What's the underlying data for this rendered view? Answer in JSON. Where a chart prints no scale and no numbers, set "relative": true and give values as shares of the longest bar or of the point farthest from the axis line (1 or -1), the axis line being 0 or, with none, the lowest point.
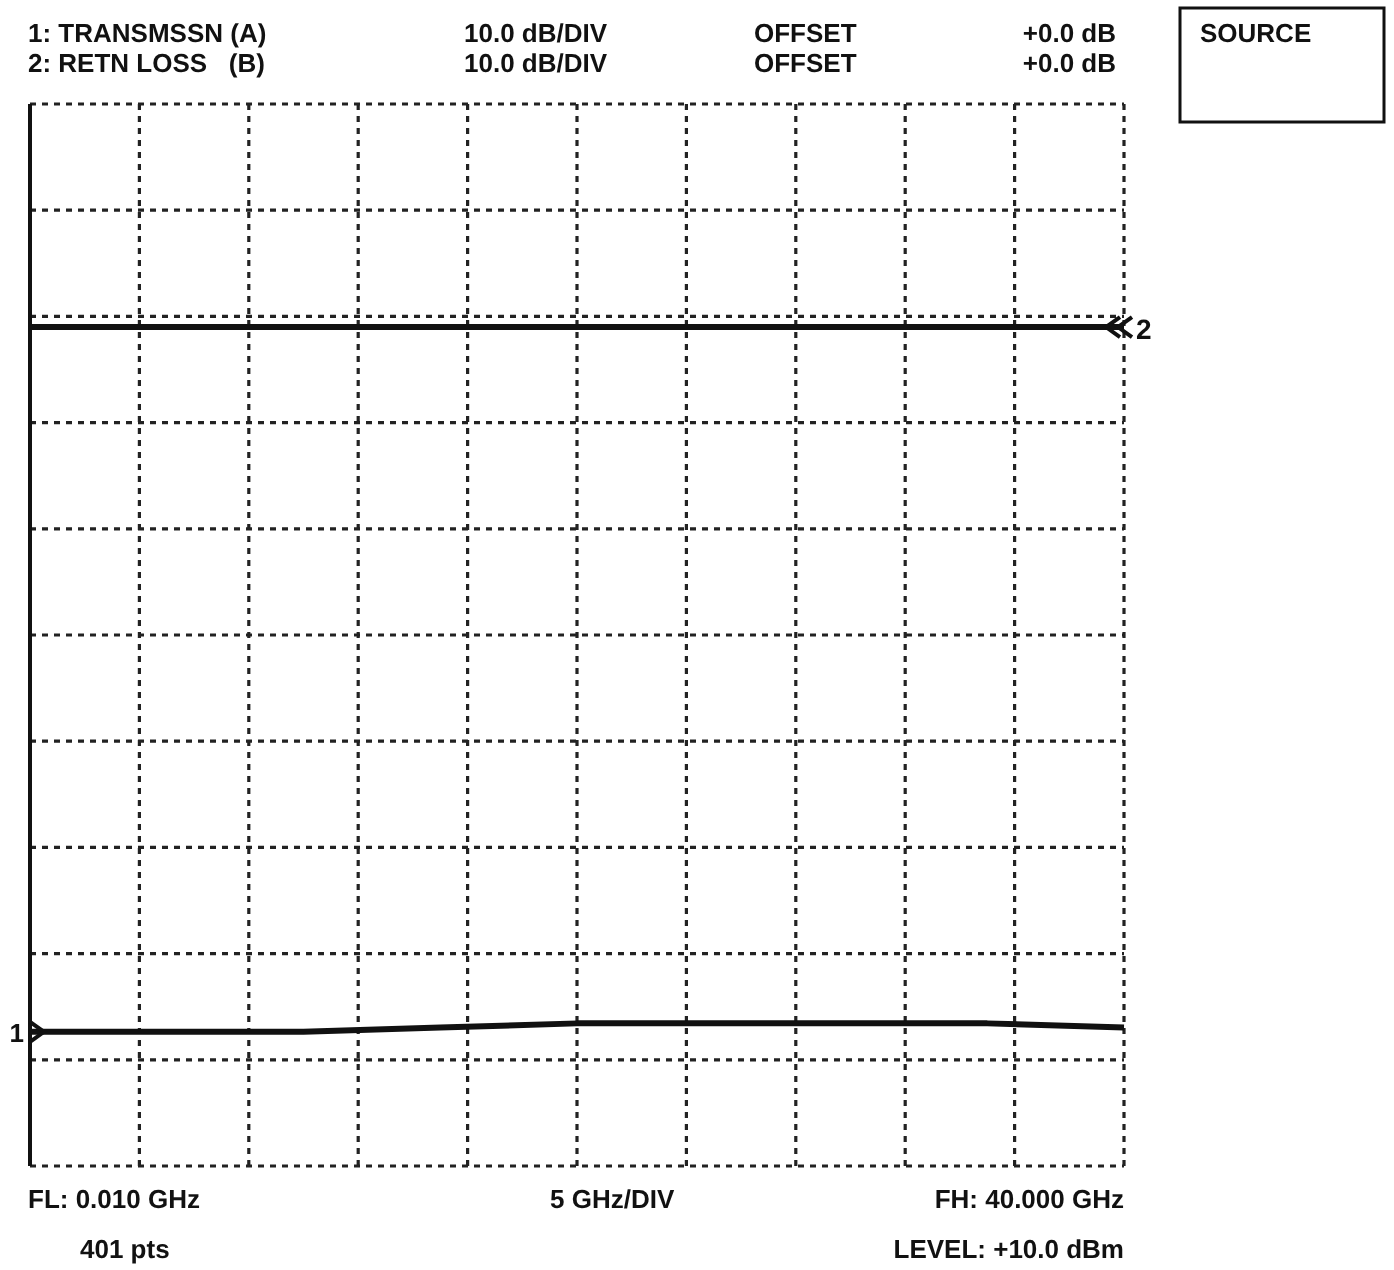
{
  "chart_data": {
    "type": "line",
    "relative": true,
    "grid": true,
    "legend": false,
    "marker": "none",
    "line_style": "solid",
    "categories": [
      null,
      null,
      null,
      null,
      null,
      null,
      null,
      null,
      null
    ],
    "series": [
      {
        "name": "1",
        "color": "#111111",
        "values": [
          0.16,
          0.16,
          0.16,
          0.165,
          0.17,
          0.17,
          0.17,
          0.17,
          0.165
        ]
      },
      {
        "name": "2",
        "color": "#111111",
        "values": [
          1,
          1,
          1,
          1,
          1,
          1,
          1,
          1,
          1
        ]
      }
    ],
    "annotations": [
      "1: TRANSMSSN (A)",
      "10.0 dB/DIV",
      "OFFSET",
      "+0.0 dB",
      "2: RETN LOSS   (B)",
      "10.0 dB/DIV",
      "OFFSET",
      "+0.0 dB",
      "SOURCE",
      "FL: 0.010 GHz",
      "5 GHz/DIV",
      "FH: 40.000 GHz",
      "401 pts",
      "LEVEL: +10.0 dBm"
    ]
  }
}
